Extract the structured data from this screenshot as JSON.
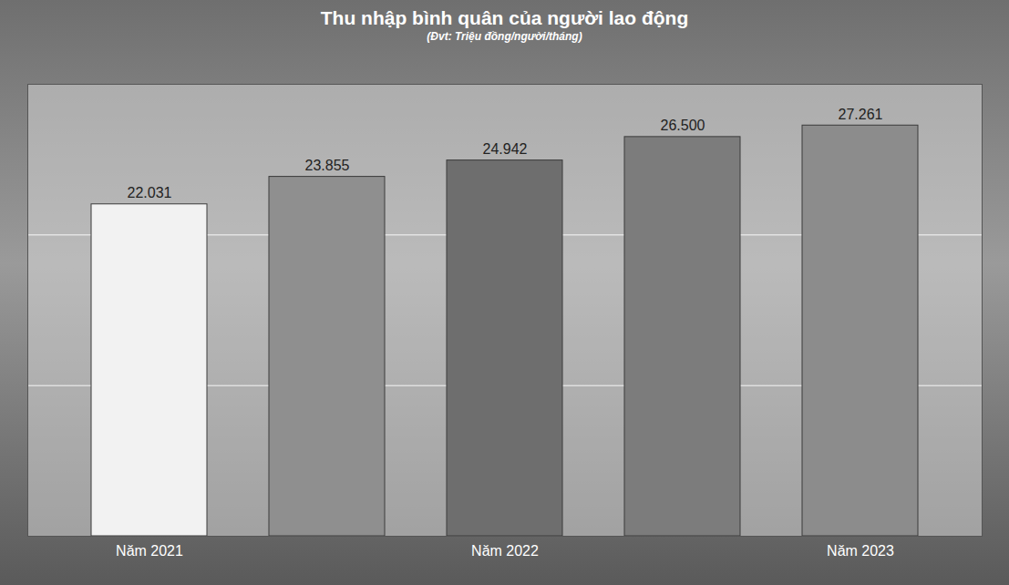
{
  "chart_data": {
    "type": "bar",
    "title": "Thu nhập bình quân của người lao động",
    "subtitle": "(Đvt: Triệu đồng/người/tháng)",
    "categories": [
      "Năm 2021",
      null,
      "Năm 2022",
      null,
      "Năm 2023"
    ],
    "values": [
      22.031,
      23.855,
      24.942,
      26.5,
      27.261
    ],
    "value_labels": [
      "22.031",
      "23.855",
      "24.942",
      "26.500",
      "27.261"
    ],
    "colors": [
      "#f2f2f2",
      "#8f8f8f",
      "#6e6e6e",
      "#7c7c7c",
      "#8c8c8c"
    ],
    "ylim": [
      0,
      30
    ],
    "yticks": [
      0,
      10,
      20,
      30
    ],
    "grid": true,
    "data_labels": true,
    "tick_labels": "x"
  }
}
